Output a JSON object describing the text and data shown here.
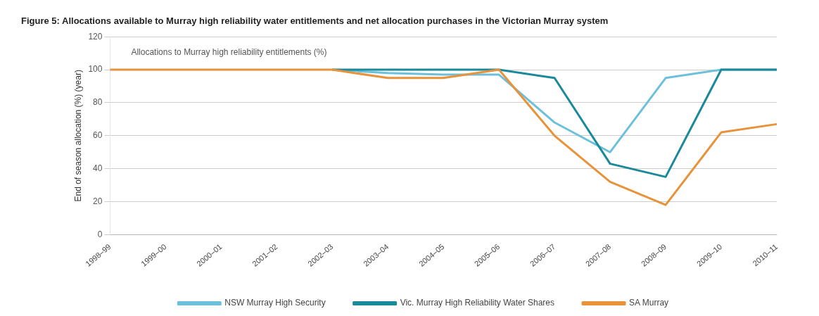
{
  "chart_data": {
    "type": "line",
    "title": "Figure 5: Allocations available to Murray high reliability water entitlements and net allocation purchases in the Victorian Murray system",
    "ylabel": "End of season allocation (%) (year)",
    "annotations": [
      "Allocations to Murray high reliability entitlements (%)"
    ],
    "categories": [
      "1998–99",
      "1999–00",
      "2000–01",
      "2001–02",
      "2002–03",
      "2003–04",
      "2004–05",
      "2005–06",
      "2006–07",
      "2007–08",
      "2008–09",
      "2009–10",
      "2010–11"
    ],
    "series": [
      {
        "name": "NSW Murray High Security",
        "color": "#6cc0dc",
        "values": [
          null,
          null,
          null,
          null,
          100,
          98,
          97,
          97,
          68,
          50,
          95,
          100,
          100
        ]
      },
      {
        "name": "Vic. Murray High Reliability Water Shares",
        "color": "#1a8a9a",
        "values": [
          null,
          null,
          null,
          null,
          100,
          100,
          100,
          100,
          95,
          43,
          35,
          100,
          100
        ]
      },
      {
        "name": "SA Murray",
        "color": "#e8923a",
        "values": [
          100,
          100,
          100,
          100,
          100,
          95,
          95,
          100,
          60,
          32,
          18,
          62,
          67
        ]
      }
    ],
    "ylim": [
      0,
      120
    ],
    "yticks": [
      0,
      20,
      40,
      60,
      80,
      100,
      120
    ],
    "grid": "y",
    "legend": "bottom",
    "marker": "none",
    "line_style": "solid"
  }
}
